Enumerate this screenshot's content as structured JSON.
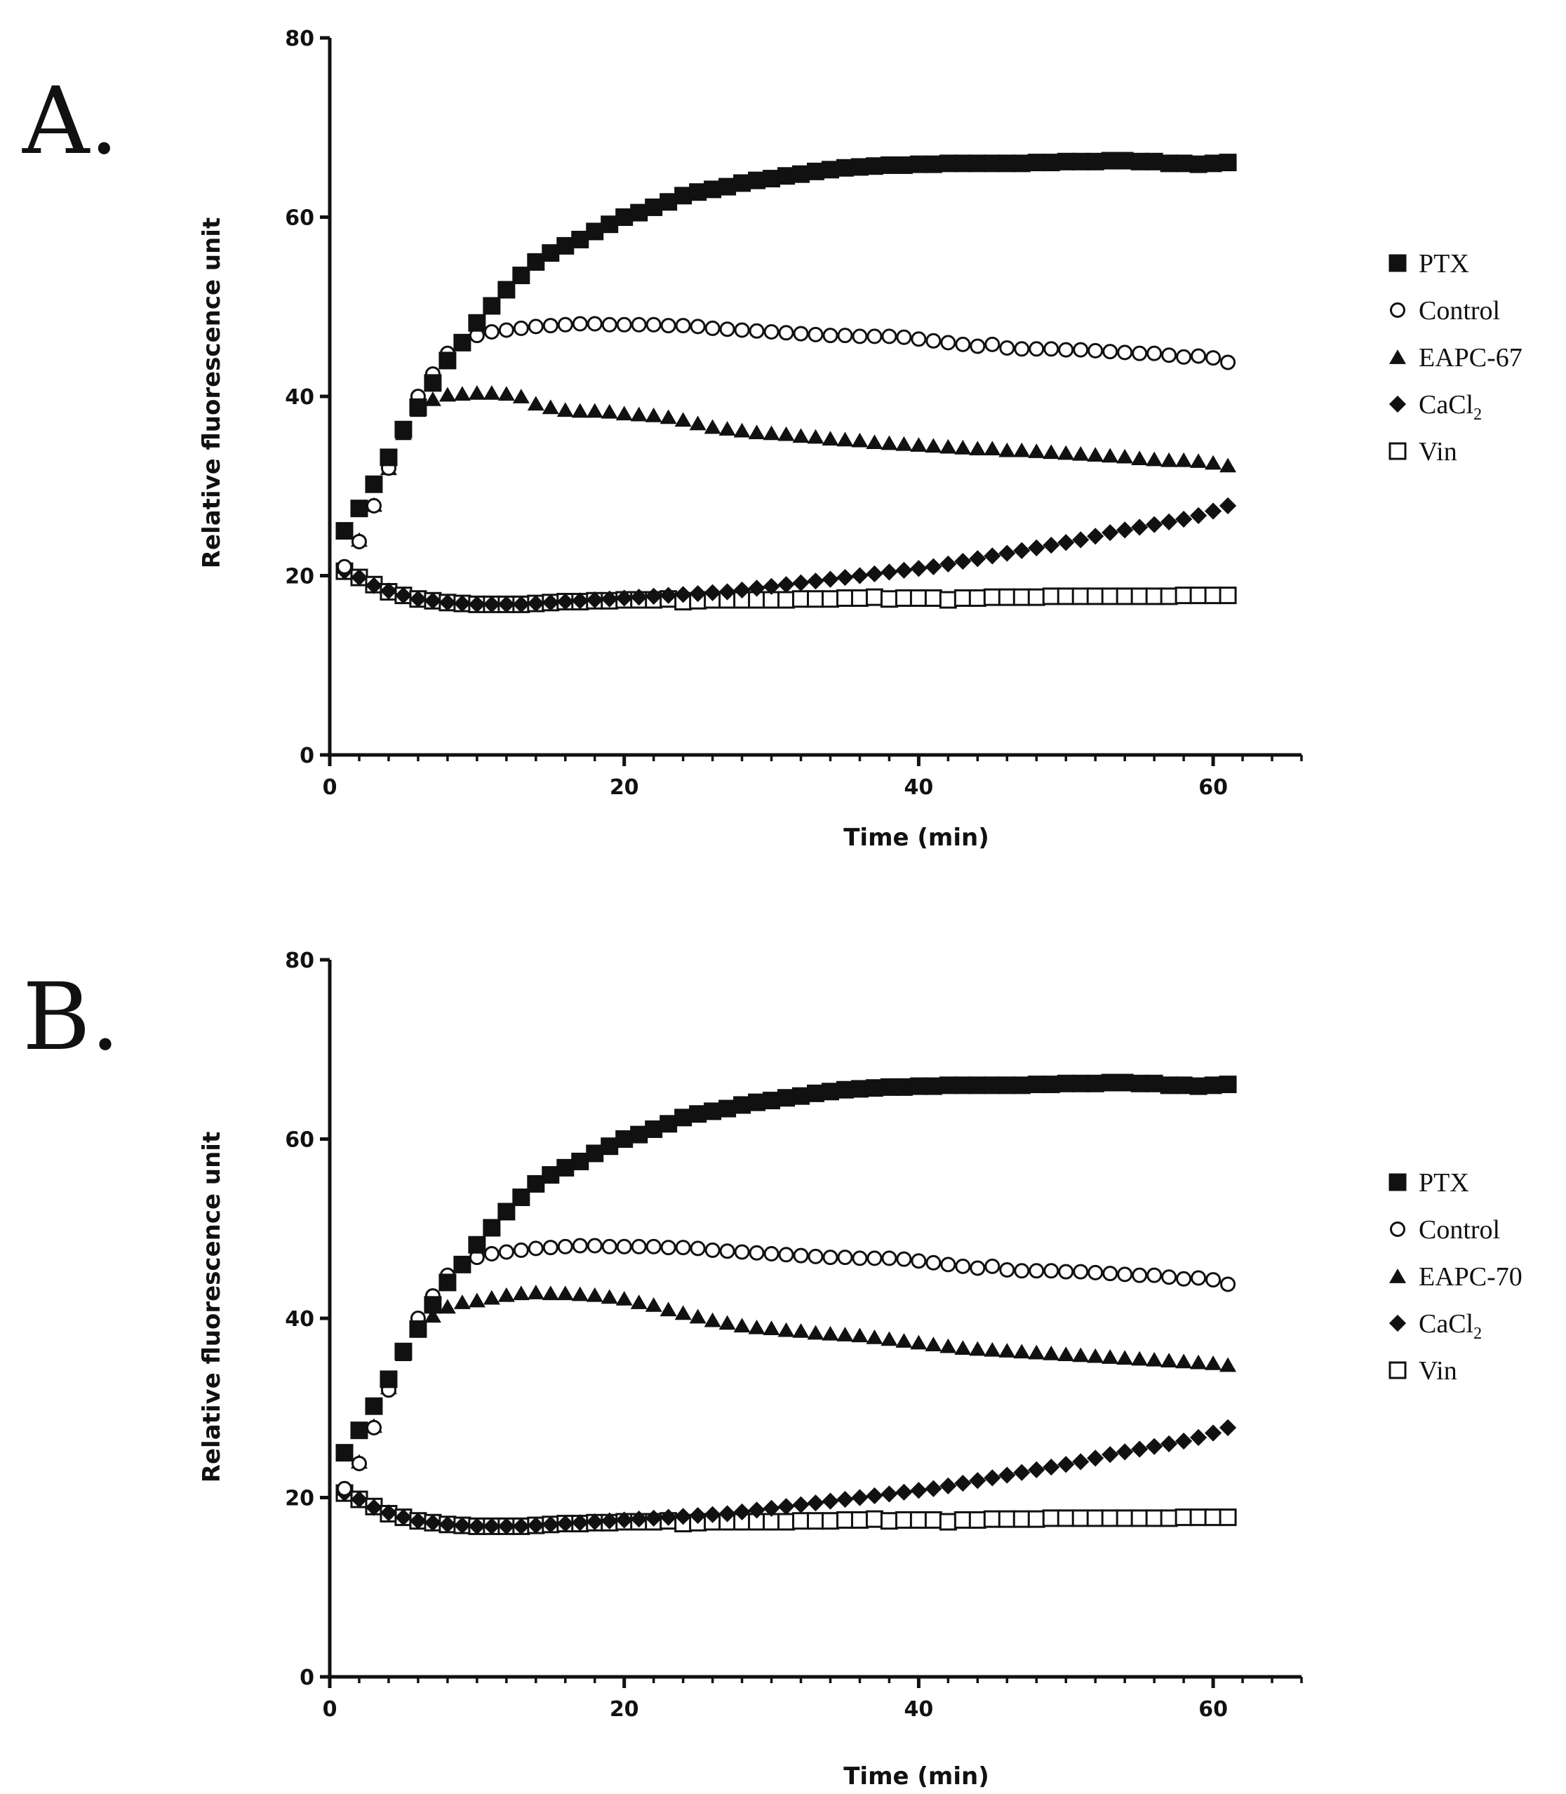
{
  "chart_data": [
    {
      "type": "scatter",
      "panel_label": "A.",
      "xlabel": "Time (min)",
      "ylabel": "Relative fluorescence unit",
      "xlim": [
        0,
        66
      ],
      "ylim": [
        0,
        80
      ],
      "x_ticks": [
        0,
        20,
        40,
        60
      ],
      "y_ticks": [
        0,
        20,
        40,
        60,
        80
      ],
      "x_minor_step": 2,
      "legend_position": "right",
      "x": [
        1,
        2,
        3,
        4,
        5,
        6,
        7,
        8,
        9,
        10,
        11,
        12,
        13,
        14,
        15,
        16,
        17,
        18,
        19,
        20,
        21,
        22,
        23,
        24,
        25,
        26,
        27,
        28,
        29,
        30,
        31,
        32,
        33,
        34,
        35,
        36,
        37,
        38,
        39,
        40,
        41,
        42,
        43,
        44,
        45,
        46,
        47,
        48,
        49,
        50,
        51,
        52,
        53,
        54,
        55,
        56,
        57,
        58,
        59,
        60,
        61
      ],
      "series": [
        {
          "name": "PTX",
          "marker": "square-filled",
          "values": [
            25.0,
            27.5,
            30.2,
            33.2,
            36.3,
            38.8,
            41.5,
            44.0,
            46.0,
            48.2,
            50.1,
            51.9,
            53.5,
            55.0,
            56.0,
            56.8,
            57.5,
            58.4,
            59.2,
            60.0,
            60.5,
            61.1,
            61.7,
            62.4,
            62.8,
            63.1,
            63.4,
            63.8,
            64.1,
            64.3,
            64.6,
            64.8,
            65.1,
            65.3,
            65.5,
            65.6,
            65.7,
            65.8,
            65.8,
            65.9,
            65.9,
            66.0,
            66.0,
            66.0,
            66.0,
            66.0,
            66.0,
            66.1,
            66.1,
            66.2,
            66.2,
            66.2,
            66.3,
            66.3,
            66.2,
            66.2,
            66.0,
            66.0,
            65.9,
            66.0,
            66.1
          ]
        },
        {
          "name": "Control",
          "marker": "circle-open",
          "values": [
            21.0,
            23.8,
            27.8,
            32.0,
            36.4,
            40.0,
            42.5,
            44.8,
            46.1,
            46.8,
            47.2,
            47.4,
            47.6,
            47.8,
            47.9,
            48.0,
            48.1,
            48.1,
            48.0,
            48.0,
            48.0,
            48.0,
            47.9,
            47.9,
            47.8,
            47.6,
            47.5,
            47.4,
            47.3,
            47.2,
            47.1,
            47.0,
            46.9,
            46.8,
            46.8,
            46.7,
            46.7,
            46.7,
            46.6,
            46.4,
            46.2,
            46.0,
            45.8,
            45.6,
            45.8,
            45.4,
            45.3,
            45.3,
            45.3,
            45.2,
            45.2,
            45.1,
            45.0,
            44.9,
            44.8,
            44.8,
            44.6,
            44.4,
            44.5,
            44.3,
            43.8
          ]
        },
        {
          "name": "EAPC-67",
          "marker": "triangle-filled",
          "values": [
            21.0,
            24.0,
            27.9,
            32.0,
            35.9,
            38.5,
            39.7,
            40.2,
            40.3,
            40.4,
            40.4,
            40.3,
            40.0,
            39.2,
            38.8,
            38.5,
            38.4,
            38.4,
            38.3,
            38.1,
            38.0,
            37.9,
            37.7,
            37.4,
            37.0,
            36.6,
            36.4,
            36.2,
            36.0,
            35.9,
            35.8,
            35.6,
            35.5,
            35.3,
            35.2,
            35.1,
            34.9,
            34.8,
            34.7,
            34.6,
            34.5,
            34.4,
            34.3,
            34.2,
            34.2,
            34.0,
            34.0,
            33.9,
            33.8,
            33.7,
            33.6,
            33.5,
            33.4,
            33.3,
            33.1,
            33.0,
            32.9,
            32.9,
            32.8,
            32.6,
            32.3
          ]
        },
        {
          "name": "CaCl₂",
          "label_main": "CaCl",
          "label_sub": "2",
          "marker": "diamond-filled",
          "values": [
            20.5,
            19.8,
            18.9,
            18.3,
            17.8,
            17.4,
            17.2,
            17.0,
            16.9,
            16.8,
            16.8,
            16.8,
            16.8,
            16.9,
            17.0,
            17.1,
            17.2,
            17.3,
            17.4,
            17.5,
            17.6,
            17.7,
            17.8,
            17.9,
            18.0,
            18.1,
            18.2,
            18.4,
            18.6,
            18.8,
            19.0,
            19.2,
            19.4,
            19.6,
            19.8,
            20.0,
            20.2,
            20.4,
            20.6,
            20.8,
            21.0,
            21.3,
            21.6,
            21.9,
            22.2,
            22.5,
            22.8,
            23.1,
            23.4,
            23.7,
            24.0,
            24.4,
            24.8,
            25.1,
            25.4,
            25.7,
            26.0,
            26.3,
            26.7,
            27.2,
            27.8
          ]
        },
        {
          "name": "Vin",
          "marker": "square-open",
          "values": [
            20.5,
            19.8,
            19.0,
            18.2,
            17.8,
            17.4,
            17.2,
            17.0,
            16.9,
            16.8,
            16.8,
            16.8,
            16.8,
            16.9,
            17.0,
            17.1,
            17.1,
            17.2,
            17.2,
            17.3,
            17.3,
            17.3,
            17.4,
            17.1,
            17.2,
            17.3,
            17.3,
            17.3,
            17.3,
            17.3,
            17.3,
            17.4,
            17.4,
            17.4,
            17.5,
            17.5,
            17.6,
            17.4,
            17.5,
            17.5,
            17.5,
            17.3,
            17.5,
            17.5,
            17.6,
            17.6,
            17.6,
            17.6,
            17.7,
            17.7,
            17.7,
            17.7,
            17.7,
            17.7,
            17.7,
            17.7,
            17.7,
            17.8,
            17.8,
            17.8,
            17.8
          ]
        }
      ]
    },
    {
      "type": "scatter",
      "panel_label": "B.",
      "xlabel": "Time (min)",
      "ylabel": "Relative fluorescence unit",
      "xlim": [
        0,
        66
      ],
      "ylim": [
        0,
        80
      ],
      "x_ticks": [
        0,
        20,
        40,
        60
      ],
      "y_ticks": [
        0,
        20,
        40,
        60,
        80
      ],
      "x_minor_step": 2,
      "legend_position": "right",
      "x": [
        1,
        2,
        3,
        4,
        5,
        6,
        7,
        8,
        9,
        10,
        11,
        12,
        13,
        14,
        15,
        16,
        17,
        18,
        19,
        20,
        21,
        22,
        23,
        24,
        25,
        26,
        27,
        28,
        29,
        30,
        31,
        32,
        33,
        34,
        35,
        36,
        37,
        38,
        39,
        40,
        41,
        42,
        43,
        44,
        45,
        46,
        47,
        48,
        49,
        50,
        51,
        52,
        53,
        54,
        55,
        56,
        57,
        58,
        59,
        60,
        61
      ],
      "series": [
        {
          "name": "PTX",
          "marker": "square-filled",
          "values": [
            25.0,
            27.5,
            30.2,
            33.2,
            36.3,
            38.8,
            41.5,
            44.0,
            46.0,
            48.2,
            50.1,
            51.9,
            53.5,
            55.0,
            56.0,
            56.8,
            57.5,
            58.4,
            59.2,
            60.0,
            60.5,
            61.1,
            61.7,
            62.4,
            62.8,
            63.1,
            63.4,
            63.8,
            64.1,
            64.3,
            64.6,
            64.8,
            65.1,
            65.3,
            65.5,
            65.6,
            65.7,
            65.8,
            65.8,
            65.9,
            65.9,
            66.0,
            66.0,
            66.0,
            66.0,
            66.0,
            66.0,
            66.1,
            66.1,
            66.2,
            66.2,
            66.2,
            66.3,
            66.3,
            66.2,
            66.2,
            66.0,
            66.0,
            65.9,
            66.0,
            66.1
          ]
        },
        {
          "name": "Control",
          "marker": "circle-open",
          "values": [
            21.0,
            23.8,
            27.8,
            32.0,
            36.4,
            40.0,
            42.5,
            44.8,
            46.1,
            46.8,
            47.2,
            47.4,
            47.6,
            47.8,
            47.9,
            48.0,
            48.1,
            48.1,
            48.0,
            48.0,
            48.0,
            48.0,
            47.9,
            47.9,
            47.8,
            47.6,
            47.5,
            47.4,
            47.3,
            47.2,
            47.1,
            47.0,
            46.9,
            46.8,
            46.8,
            46.7,
            46.7,
            46.7,
            46.6,
            46.4,
            46.2,
            46.0,
            45.8,
            45.6,
            45.8,
            45.4,
            45.3,
            45.3,
            45.3,
            45.2,
            45.2,
            45.1,
            45.0,
            44.9,
            44.8,
            44.8,
            44.6,
            44.4,
            44.5,
            44.3,
            43.8
          ]
        },
        {
          "name": "EAPC-70",
          "marker": "triangle-filled",
          "values": [
            21.0,
            24.0,
            28.0,
            32.3,
            36.0,
            38.8,
            40.3,
            41.3,
            41.8,
            42.0,
            42.3,
            42.6,
            42.8,
            42.9,
            42.8,
            42.8,
            42.7,
            42.6,
            42.4,
            42.2,
            41.8,
            41.5,
            41.0,
            40.6,
            40.2,
            39.8,
            39.5,
            39.2,
            39.0,
            38.9,
            38.7,
            38.6,
            38.4,
            38.3,
            38.2,
            38.1,
            37.9,
            37.7,
            37.5,
            37.3,
            37.1,
            36.9,
            36.7,
            36.6,
            36.5,
            36.4,
            36.3,
            36.2,
            36.1,
            36.0,
            35.9,
            35.8,
            35.7,
            35.6,
            35.5,
            35.4,
            35.3,
            35.2,
            35.1,
            35.0,
            34.8
          ]
        },
        {
          "name": "CaCl₂",
          "label_main": "CaCl",
          "label_sub": "2",
          "marker": "diamond-filled",
          "values": [
            20.5,
            19.8,
            18.9,
            18.3,
            17.8,
            17.4,
            17.2,
            17.0,
            16.9,
            16.8,
            16.8,
            16.8,
            16.8,
            16.9,
            17.0,
            17.1,
            17.2,
            17.3,
            17.4,
            17.5,
            17.6,
            17.7,
            17.8,
            17.9,
            18.0,
            18.1,
            18.2,
            18.4,
            18.6,
            18.8,
            19.0,
            19.2,
            19.4,
            19.6,
            19.8,
            20.0,
            20.2,
            20.4,
            20.6,
            20.8,
            21.0,
            21.3,
            21.6,
            21.9,
            22.2,
            22.5,
            22.8,
            23.1,
            23.4,
            23.7,
            24.0,
            24.4,
            24.8,
            25.1,
            25.4,
            25.7,
            26.0,
            26.3,
            26.7,
            27.2,
            27.8
          ]
        },
        {
          "name": "Vin",
          "marker": "square-open",
          "values": [
            20.5,
            19.8,
            19.0,
            18.2,
            17.8,
            17.4,
            17.2,
            17.0,
            16.9,
            16.8,
            16.8,
            16.8,
            16.8,
            16.9,
            17.0,
            17.1,
            17.1,
            17.2,
            17.2,
            17.3,
            17.3,
            17.3,
            17.4,
            17.1,
            17.2,
            17.3,
            17.3,
            17.3,
            17.3,
            17.3,
            17.3,
            17.4,
            17.4,
            17.4,
            17.5,
            17.5,
            17.6,
            17.4,
            17.5,
            17.5,
            17.5,
            17.3,
            17.5,
            17.5,
            17.6,
            17.6,
            17.6,
            17.6,
            17.7,
            17.7,
            17.7,
            17.7,
            17.7,
            17.7,
            17.7,
            17.7,
            17.7,
            17.8,
            17.8,
            17.8,
            17.8
          ]
        }
      ]
    }
  ]
}
